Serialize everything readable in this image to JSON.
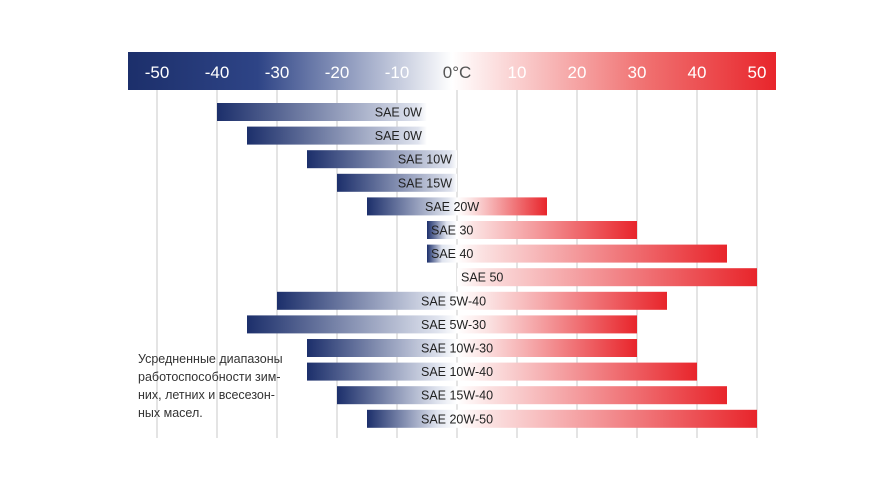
{
  "chart_data": {
    "type": "bar",
    "subtype": "floating-range-horizontal",
    "xlim": [
      -55,
      50
    ],
    "ticks": [
      {
        "value": -50,
        "label": "-50"
      },
      {
        "value": -40,
        "label": "-40"
      },
      {
        "value": -30,
        "label": "-30"
      },
      {
        "value": -20,
        "label": "-20"
      },
      {
        "value": -10,
        "label": "-10"
      },
      {
        "value": 0,
        "label": "0°C"
      },
      {
        "value": 10,
        "label": "10"
      },
      {
        "value": 20,
        "label": "20"
      },
      {
        "value": 30,
        "label": "30"
      },
      {
        "value": 40,
        "label": "40"
      },
      {
        "value": 50,
        "label": "50"
      }
    ],
    "grid": true,
    "scale_colors": {
      "cold": "#1c2f6b",
      "neutral": "#ffffff",
      "hot": "#e8252b"
    },
    "bars": [
      {
        "label": "SAE 0W",
        "start": -40,
        "end": -5
      },
      {
        "label": "SAE 0W",
        "start": -35,
        "end": -5
      },
      {
        "label": "SAE 10W",
        "start": -25,
        "end": 0
      },
      {
        "label": "SAE 15W",
        "start": -20,
        "end": 0
      },
      {
        "label": "SAE 20W",
        "start": -15,
        "end": 15
      },
      {
        "label": "SAE 30",
        "start": -5,
        "end": 30
      },
      {
        "label": "SAE 40",
        "start": -5,
        "end": 45
      },
      {
        "label": "SAE 50",
        "start": 0,
        "end": 50
      },
      {
        "label": "SAE 5W-40",
        "start": -30,
        "end": 35
      },
      {
        "label": "SAE 5W-30",
        "start": -35,
        "end": 30
      },
      {
        "label": "SAE 10W-30",
        "start": -25,
        "end": 30
      },
      {
        "label": "SAE 10W-40",
        "start": -25,
        "end": 40
      },
      {
        "label": "SAE 15W-40",
        "start": -20,
        "end": 45
      },
      {
        "label": "SAE 20W-50",
        "start": -15,
        "end": 50
      }
    ],
    "annotation": [
      "Усредненные диапазоны",
      "работоспособности зим-",
      "них, летних и всесезон-",
      "ных масел."
    ]
  }
}
